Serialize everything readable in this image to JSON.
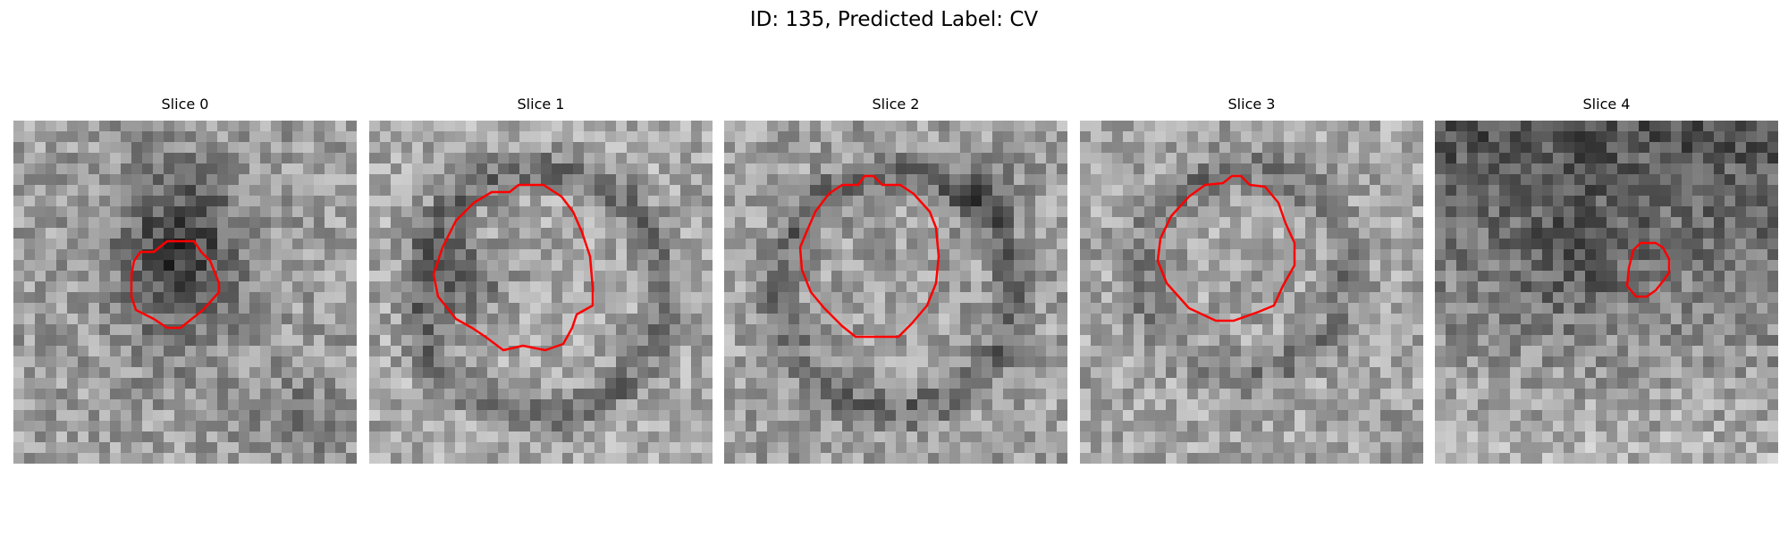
{
  "figure": {
    "title": "ID: 135, Predicted Label: CV"
  },
  "panels": [
    {
      "title": "Slice 0"
    },
    {
      "title": "Slice 1"
    },
    {
      "title": "Slice 2"
    },
    {
      "title": "Slice 3"
    },
    {
      "title": "Slice 4"
    }
  ],
  "colors": {
    "contour": "#ff0000",
    "colormap": "grayscale"
  }
}
